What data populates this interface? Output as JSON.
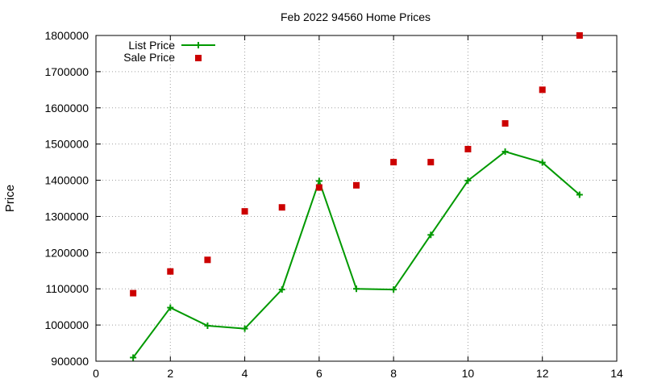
{
  "chart_data": {
    "type": "line",
    "title": "Feb 2022 94560 Home Prices",
    "xlabel": "",
    "ylabel": "Price",
    "xlim": [
      0,
      14
    ],
    "ylim": [
      900000,
      1800000
    ],
    "x_ticks": [
      0,
      2,
      4,
      6,
      8,
      10,
      12,
      14
    ],
    "y_ticks": [
      900000,
      1000000,
      1100000,
      1200000,
      1300000,
      1400000,
      1500000,
      1600000,
      1700000,
      1800000
    ],
    "grid": true,
    "legend_position": "top-left",
    "series": [
      {
        "name": "List Price",
        "style": "line-with-plus-markers",
        "color": "#009900",
        "x": [
          1,
          2,
          3,
          4,
          5,
          6,
          7,
          8,
          9,
          10,
          11,
          12,
          13
        ],
        "y": [
          910000,
          1048000,
          998000,
          990000,
          1098000,
          1398000,
          1100000,
          1098000,
          1249000,
          1399000,
          1479000,
          1449000,
          1360000
        ]
      },
      {
        "name": "Sale Price",
        "style": "square-markers",
        "color": "#cc0000",
        "x": [
          1,
          2,
          3,
          4,
          5,
          6,
          7,
          8,
          9,
          10,
          11,
          12,
          13
        ],
        "y": [
          1088000,
          1148000,
          1180000,
          1314000,
          1325000,
          1380000,
          1386000,
          1450000,
          1450000,
          1486000,
          1557000,
          1650000,
          1800000
        ]
      }
    ]
  }
}
